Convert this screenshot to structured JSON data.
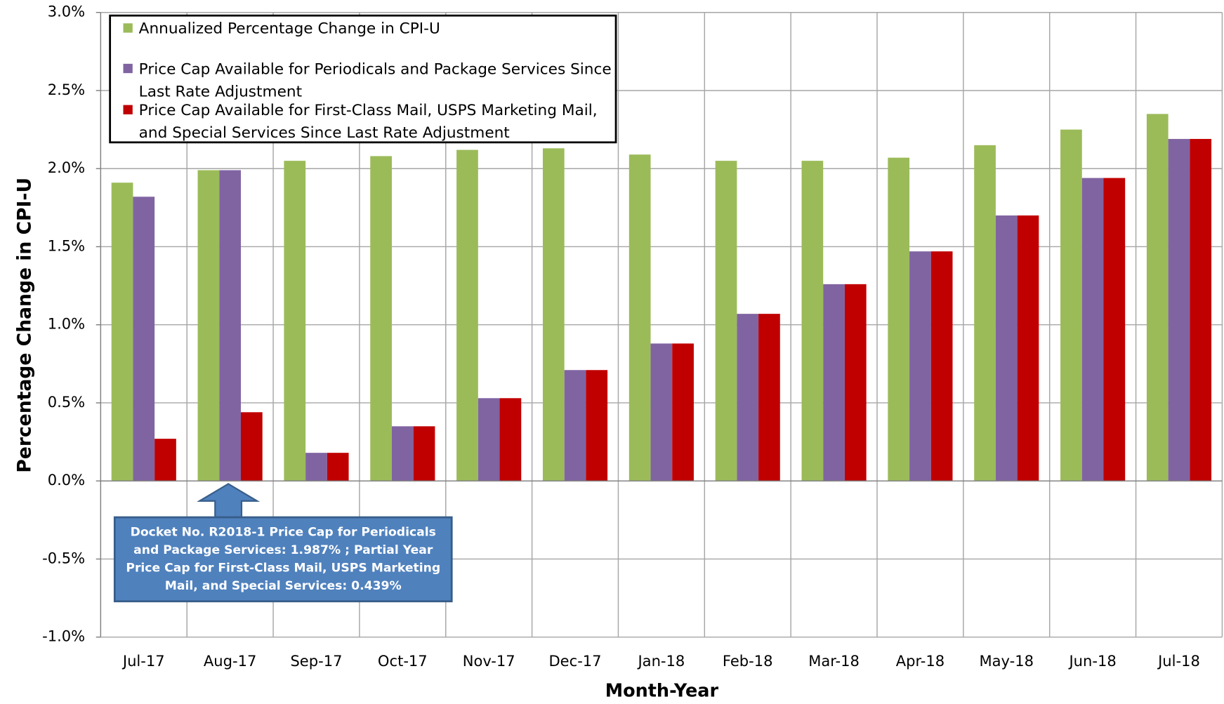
{
  "chart_data": {
    "type": "bar",
    "y_label": "Percentage Change in CPI-U",
    "x_label": "Month-Year",
    "annotation": "Docket No. R2018-1 Price Cap for Periodicals and Package Services: 1.987% ; Partial Year Price Cap for First-Class Mail, USPS Marketing Mail, and Special Services: 0.439%",
    "categories": [
      "Jul-17",
      "Aug-17",
      "Sep-17",
      "Oct-17",
      "Nov-17",
      "Dec-17",
      "Jan-18",
      "Feb-18",
      "Mar-18",
      "Apr-18",
      "May-18",
      "Jun-18",
      "Jul-18"
    ],
    "series": [
      {
        "name": "Annualized Percentage Change in CPI-U",
        "color": "#9bbb59",
        "values": [
          1.91,
          1.99,
          2.05,
          2.08,
          2.12,
          2.13,
          2.09,
          2.05,
          2.05,
          2.07,
          2.15,
          2.25,
          2.35
        ]
      },
      {
        "name": "Price Cap Available for Periodicals and Package Services Since Last Rate Adjustment",
        "color": "#8064a2",
        "values": [
          1.82,
          1.99,
          0.18,
          0.35,
          0.53,
          0.71,
          0.88,
          1.07,
          1.26,
          1.47,
          1.7,
          1.94,
          2.19
        ]
      },
      {
        "name": "Price Cap Available for First-Class Mail, USPS Marketing Mail, and Special Services Since Last Rate Adjustment",
        "color": "#c00000",
        "values": [
          0.27,
          0.44,
          0.18,
          0.35,
          0.53,
          0.71,
          0.88,
          1.07,
          1.26,
          1.47,
          1.7,
          1.94,
          2.19
        ]
      }
    ],
    "ylim": [
      -1.0,
      3.0
    ],
    "yticks": [
      {
        "value": -1.0,
        "label": "-1.0%"
      },
      {
        "value": -0.5,
        "label": "-0.5%"
      },
      {
        "value": 0.0,
        "label": "0.0%"
      },
      {
        "value": 0.5,
        "label": "0.5%"
      },
      {
        "value": 1.0,
        "label": "1.0%"
      },
      {
        "value": 1.5,
        "label": "1.5%"
      },
      {
        "value": 2.0,
        "label": "2.0%"
      },
      {
        "value": 2.5,
        "label": "2.5%"
      },
      {
        "value": 3.0,
        "label": "3.0%"
      }
    ],
    "grid": true,
    "legend": "upper left"
  }
}
